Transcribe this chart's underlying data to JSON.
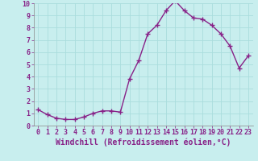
{
  "x": [
    0,
    1,
    2,
    3,
    4,
    5,
    6,
    7,
    8,
    9,
    10,
    11,
    12,
    13,
    14,
    15,
    16,
    17,
    18,
    19,
    20,
    21,
    22,
    23
  ],
  "y": [
    1.3,
    0.9,
    0.6,
    0.5,
    0.5,
    0.7,
    1.0,
    1.2,
    1.2,
    1.1,
    3.8,
    5.3,
    7.5,
    8.2,
    9.4,
    10.2,
    9.4,
    8.8,
    8.7,
    8.2,
    7.5,
    6.5,
    4.7,
    5.7
  ],
  "line_color": "#882288",
  "marker": "+",
  "marker_size": 4,
  "linewidth": 1.0,
  "bg_color": "#C8EEEE",
  "grid_color": "#AADDDD",
  "xlabel": "Windchill (Refroidissement éolien,°C)",
  "xlim": [
    -0.5,
    23.5
  ],
  "ylim": [
    0,
    10
  ],
  "xtick_labels": [
    "0",
    "1",
    "2",
    "3",
    "4",
    "5",
    "6",
    "7",
    "8",
    "9",
    "10",
    "11",
    "12",
    "13",
    "14",
    "15",
    "16",
    "17",
    "18",
    "19",
    "20",
    "21",
    "22",
    "23"
  ],
  "ytick_labels": [
    "0",
    "1",
    "2",
    "3",
    "4",
    "5",
    "6",
    "7",
    "8",
    "9",
    "10"
  ],
  "tick_fontsize": 6.0,
  "xlabel_fontsize": 7.0,
  "markeredgewidth": 1.0
}
